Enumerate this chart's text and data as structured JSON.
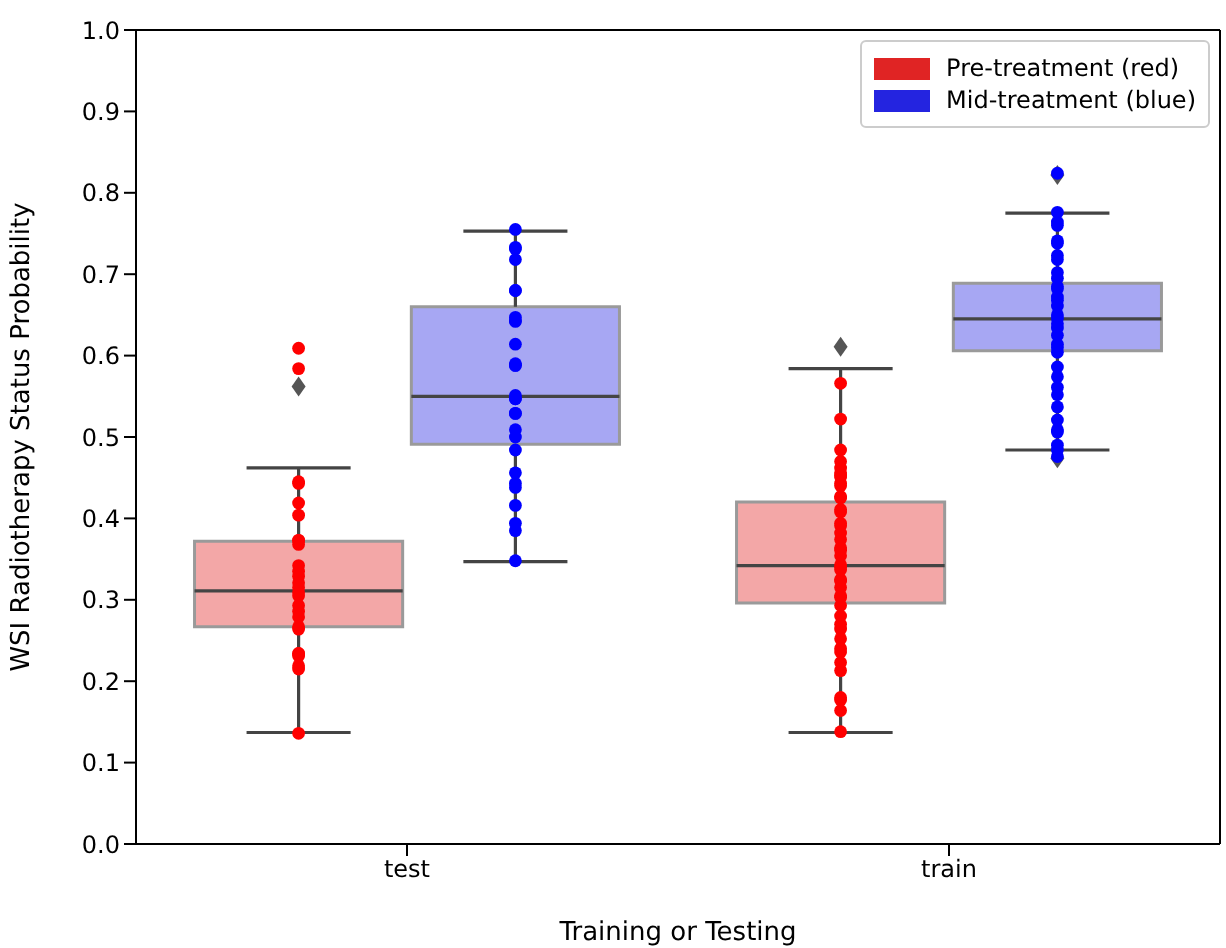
{
  "chart_data": {
    "type": "box",
    "xlabel": "Training or Testing",
    "ylabel": "WSI Radiotherapy Status Probability",
    "categories": [
      "test",
      "train"
    ],
    "ylim": [
      0,
      1
    ],
    "yticks": [
      {
        "value": 0,
        "label": "0.0"
      },
      0.1,
      0.2,
      0.3,
      0.4,
      0.5,
      0.6,
      0.7,
      0.8,
      0.9,
      {
        "value": 1,
        "label": "1.0"
      }
    ],
    "legend": "top right",
    "series": [
      {
        "name": "Pre-treatment (red)",
        "color": "#e02424",
        "boxes": [
          {
            "low": 0.137,
            "q1": 0.267,
            "median": 0.311,
            "q3": 0.372,
            "high": 0.462,
            "outliers": [
              0.562
            ]
          },
          {
            "low": 0.137,
            "q1": 0.296,
            "median": 0.342,
            "q3": 0.42,
            "high": 0.584,
            "outliers": [
              0.611
            ]
          }
        ]
      },
      {
        "name": "Mid-treatment (blue)",
        "color": "#2424e0",
        "boxes": [
          {
            "low": 0.347,
            "q1": 0.491,
            "median": 0.55,
            "q3": 0.66,
            "high": 0.753
          },
          {
            "low": 0.484,
            "q1": 0.606,
            "median": 0.645,
            "q3": 0.689,
            "high": 0.775,
            "outliers": [
              0.822,
              0.474
            ]
          }
        ]
      },
      {
        "type": "scatter",
        "color": "#ff0000",
        "x": [
          "train",
          "train",
          "test",
          "test",
          "test",
          "test",
          "test",
          "test",
          "test",
          "test",
          "test",
          "test",
          "test",
          "test",
          "test",
          "test",
          "test",
          "test",
          "test",
          "test",
          "test",
          "test",
          "test",
          "test",
          "test",
          "test",
          "test",
          "test",
          "test",
          "train",
          "train",
          "train",
          "train",
          "train",
          "train",
          "train",
          "train",
          "train",
          "train",
          "train",
          "train",
          "train",
          "train",
          "train",
          "train",
          "train",
          "train",
          "train",
          "train",
          "train",
          "train",
          "train",
          "train",
          "train",
          "train",
          "train",
          "train",
          "train",
          "train",
          "train",
          "train",
          "train",
          "train",
          "train",
          "train",
          "train",
          "train",
          "train",
          "train"
        ],
        "values": [
          0.566,
          0.462,
          0.443,
          0.445,
          0.419,
          0.404,
          0.373,
          0.368,
          0.373,
          0.342,
          0.335,
          0.329,
          0.321,
          0.315,
          0.309,
          0.305,
          0.293,
          0.286,
          0.279,
          0.267,
          0.264,
          0.234,
          0.234,
          0.231,
          0.219,
          0.215,
          0.136,
          0.609,
          0.584,
          0.522,
          0.484,
          0.47,
          0.456,
          0.453,
          0.451,
          0.443,
          0.44,
          0.427,
          0.425,
          0.411,
          0.408,
          0.394,
          0.391,
          0.382,
          0.374,
          0.364,
          0.361,
          0.354,
          0.343,
          0.34,
          0.337,
          0.325,
          0.323,
          0.315,
          0.305,
          0.303,
          0.293,
          0.28,
          0.27,
          0.264,
          0.252,
          0.24,
          0.236,
          0.223,
          0.213,
          0.18,
          0.177,
          0.164,
          0.138
        ]
      },
      {
        "type": "scatter",
        "color": "#0000ff",
        "x": [
          "test",
          "test",
          "test",
          "test",
          "test",
          "test",
          "test",
          "test",
          "test",
          "test",
          "test",
          "test",
          "test",
          "test",
          "test",
          "test",
          "test",
          "test",
          "test",
          "test",
          "test",
          "test",
          "test",
          "test",
          "test",
          "test",
          "test",
          "test",
          "train",
          "train",
          "train",
          "train",
          "train",
          "train",
          "train",
          "train",
          "train",
          "train",
          "train",
          "train",
          "train",
          "train",
          "train",
          "train",
          "train",
          "train",
          "train",
          "train",
          "train",
          "train",
          "train",
          "train",
          "train",
          "train",
          "train",
          "train",
          "train",
          "train",
          "train",
          "train",
          "train",
          "train"
        ],
        "values": [
          0.755,
          0.733,
          0.731,
          0.718,
          0.68,
          0.68,
          0.647,
          0.643,
          0.642,
          0.614,
          0.59,
          0.588,
          0.588,
          0.551,
          0.547,
          0.547,
          0.529,
          0.529,
          0.509,
          0.5,
          0.484,
          0.456,
          0.443,
          0.438,
          0.416,
          0.394,
          0.385,
          0.348,
          0.824,
          0.776,
          0.764,
          0.76,
          0.741,
          0.738,
          0.723,
          0.718,
          0.702,
          0.695,
          0.685,
          0.682,
          0.672,
          0.668,
          0.661,
          0.65,
          0.646,
          0.639,
          0.634,
          0.625,
          0.614,
          0.61,
          0.604,
          0.586,
          0.574,
          0.561,
          0.552,
          0.537,
          0.521,
          0.509,
          0.506,
          0.49,
          0.484,
          0.476
        ]
      }
    ]
  }
}
